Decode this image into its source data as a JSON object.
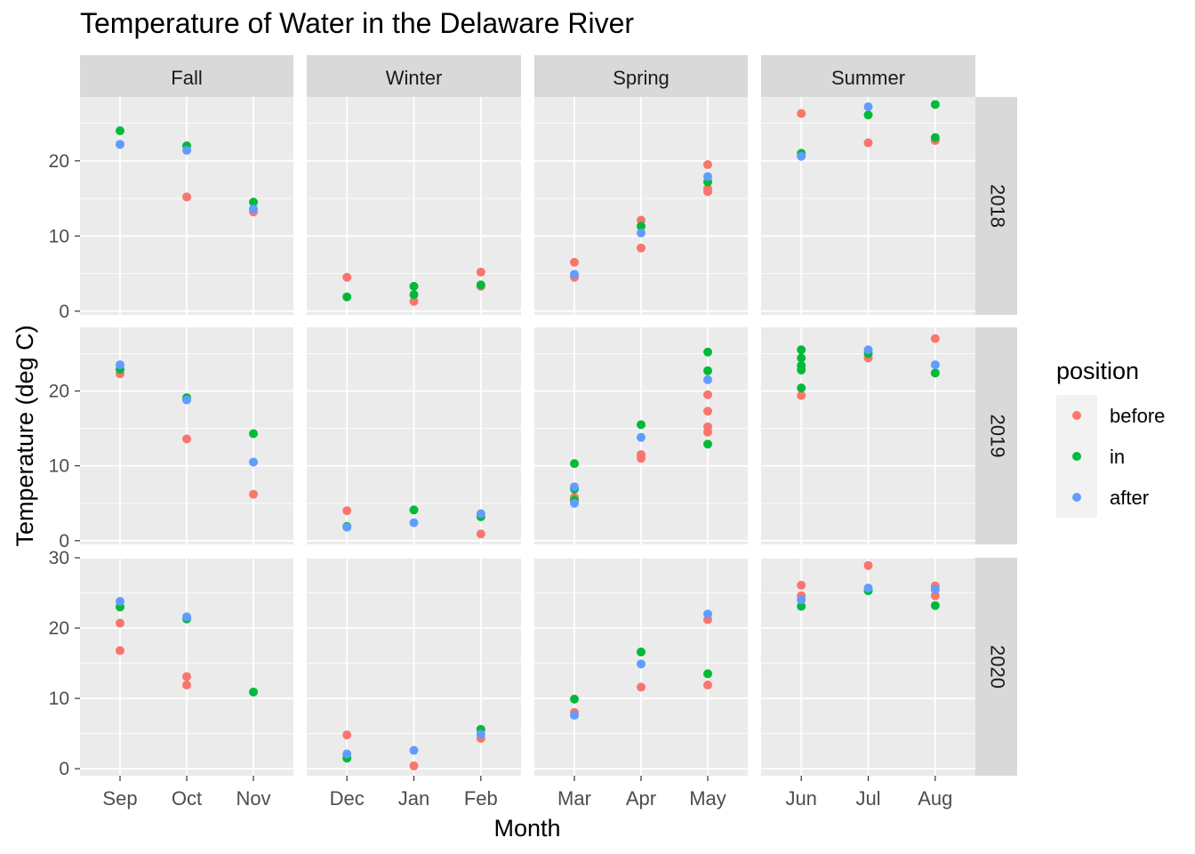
{
  "chart_data": {
    "type": "scatter",
    "title": "Temperature of Water in the Delaware River",
    "xlabel": "Month",
    "ylabel": "Temperature (deg C)",
    "legend": {
      "title": "position",
      "placement": "right",
      "entries": [
        {
          "name": "before",
          "color": "#F8766D"
        },
        {
          "name": "in",
          "color": "#00BA38"
        },
        {
          "name": "after",
          "color": "#619CFF"
        }
      ]
    },
    "columns": [
      {
        "label": "Fall",
        "months": [
          "Sep",
          "Oct",
          "Nov"
        ]
      },
      {
        "label": "Winter",
        "months": [
          "Dec",
          "Jan",
          "Feb"
        ]
      },
      {
        "label": "Spring",
        "months": [
          "Mar",
          "Apr",
          "May"
        ]
      },
      {
        "label": "Summer",
        "months": [
          "Jun",
          "Jul",
          "Aug"
        ]
      }
    ],
    "rows": [
      {
        "label": "2018",
        "ylim": [
          -0.5,
          28.5
        ],
        "yticks": [
          0,
          10,
          20
        ]
      },
      {
        "label": "2019",
        "ylim": [
          -0.5,
          28.5
        ],
        "yticks": [
          0,
          10,
          20
        ]
      },
      {
        "label": "2020",
        "ylim": [
          -1,
          30
        ],
        "yticks": [
          0,
          10,
          20,
          30
        ]
      }
    ],
    "grid": true,
    "points": [
      {
        "year": "2018",
        "month": "Sep",
        "position": "before",
        "y": 22.2
      },
      {
        "year": "2018",
        "month": "Sep",
        "position": "in",
        "y": 24.0
      },
      {
        "year": "2018",
        "month": "Sep",
        "position": "after",
        "y": 22.2
      },
      {
        "year": "2018",
        "month": "Oct",
        "position": "before",
        "y": 15.2
      },
      {
        "year": "2018",
        "month": "Oct",
        "position": "in",
        "y": 22.0
      },
      {
        "year": "2018",
        "month": "Oct",
        "position": "after",
        "y": 21.4
      },
      {
        "year": "2018",
        "month": "Nov",
        "position": "before",
        "y": 13.2
      },
      {
        "year": "2018",
        "month": "Nov",
        "position": "in",
        "y": 14.5
      },
      {
        "year": "2018",
        "month": "Nov",
        "position": "after",
        "y": 13.6
      },
      {
        "year": "2018",
        "month": "Dec",
        "position": "before",
        "y": 4.5
      },
      {
        "year": "2018",
        "month": "Dec",
        "position": "in",
        "y": 1.9
      },
      {
        "year": "2018",
        "month": "Jan",
        "position": "before",
        "y": 1.3
      },
      {
        "year": "2018",
        "month": "Jan",
        "position": "in",
        "y": 2.2
      },
      {
        "year": "2018",
        "month": "Jan",
        "position": "in",
        "y": 3.3
      },
      {
        "year": "2018",
        "month": "Feb",
        "position": "before",
        "y": 5.2
      },
      {
        "year": "2018",
        "month": "Feb",
        "position": "before",
        "y": 3.3
      },
      {
        "year": "2018",
        "month": "Feb",
        "position": "in",
        "y": 3.5
      },
      {
        "year": "2018",
        "month": "Mar",
        "position": "before",
        "y": 6.5
      },
      {
        "year": "2018",
        "month": "Mar",
        "position": "before",
        "y": 4.5
      },
      {
        "year": "2018",
        "month": "Mar",
        "position": "after",
        "y": 4.9
      },
      {
        "year": "2018",
        "month": "Apr",
        "position": "before",
        "y": 12.1
      },
      {
        "year": "2018",
        "month": "Apr",
        "position": "before",
        "y": 8.4
      },
      {
        "year": "2018",
        "month": "Apr",
        "position": "in",
        "y": 11.3
      },
      {
        "year": "2018",
        "month": "Apr",
        "position": "after",
        "y": 10.4
      },
      {
        "year": "2018",
        "month": "May",
        "position": "before",
        "y": 19.5
      },
      {
        "year": "2018",
        "month": "May",
        "position": "before",
        "y": 16.3
      },
      {
        "year": "2018",
        "month": "May",
        "position": "before",
        "y": 15.9
      },
      {
        "year": "2018",
        "month": "May",
        "position": "in",
        "y": 17.2
      },
      {
        "year": "2018",
        "month": "May",
        "position": "after",
        "y": 17.9
      },
      {
        "year": "2018",
        "month": "Jun",
        "position": "before",
        "y": 26.3
      },
      {
        "year": "2018",
        "month": "Jun",
        "position": "in",
        "y": 21.0
      },
      {
        "year": "2018",
        "month": "Jun",
        "position": "after",
        "y": 20.6
      },
      {
        "year": "2018",
        "month": "Jul",
        "position": "before",
        "y": 22.4
      },
      {
        "year": "2018",
        "month": "Jul",
        "position": "in",
        "y": 26.1
      },
      {
        "year": "2018",
        "month": "Jul",
        "position": "after",
        "y": 27.2
      },
      {
        "year": "2018",
        "month": "Aug",
        "position": "before",
        "y": 22.7
      },
      {
        "year": "2018",
        "month": "Aug",
        "position": "in",
        "y": 27.5
      },
      {
        "year": "2018",
        "month": "Aug",
        "position": "in",
        "y": 23.1
      },
      {
        "year": "2019",
        "month": "Sep",
        "position": "before",
        "y": 22.3
      },
      {
        "year": "2019",
        "month": "Sep",
        "position": "in",
        "y": 22.9
      },
      {
        "year": "2019",
        "month": "Sep",
        "position": "after",
        "y": 23.5
      },
      {
        "year": "2019",
        "month": "Oct",
        "position": "before",
        "y": 13.6
      },
      {
        "year": "2019",
        "month": "Oct",
        "position": "in",
        "y": 19.1
      },
      {
        "year": "2019",
        "month": "Oct",
        "position": "after",
        "y": 18.8
      },
      {
        "year": "2019",
        "month": "Nov",
        "position": "before",
        "y": 6.2
      },
      {
        "year": "2019",
        "month": "Nov",
        "position": "in",
        "y": 14.3
      },
      {
        "year": "2019",
        "month": "Nov",
        "position": "after",
        "y": 10.5
      },
      {
        "year": "2019",
        "month": "Dec",
        "position": "before",
        "y": 4.0
      },
      {
        "year": "2019",
        "month": "Dec",
        "position": "in",
        "y": 1.9
      },
      {
        "year": "2019",
        "month": "Dec",
        "position": "after",
        "y": 1.8
      },
      {
        "year": "2019",
        "month": "Jan",
        "position": "in",
        "y": 4.1
      },
      {
        "year": "2019",
        "month": "Jan",
        "position": "after",
        "y": 2.4
      },
      {
        "year": "2019",
        "month": "Feb",
        "position": "before",
        "y": 0.9
      },
      {
        "year": "2019",
        "month": "Feb",
        "position": "in",
        "y": 3.2
      },
      {
        "year": "2019",
        "month": "Feb",
        "position": "after",
        "y": 3.6
      },
      {
        "year": "2019",
        "month": "Mar",
        "position": "before",
        "y": 5.8
      },
      {
        "year": "2019",
        "month": "Mar",
        "position": "in",
        "y": 10.3
      },
      {
        "year": "2019",
        "month": "Mar",
        "position": "in",
        "y": 6.9
      },
      {
        "year": "2019",
        "month": "Mar",
        "position": "in",
        "y": 5.4
      },
      {
        "year": "2019",
        "month": "Mar",
        "position": "after",
        "y": 7.2
      },
      {
        "year": "2019",
        "month": "Mar",
        "position": "after",
        "y": 5.0
      },
      {
        "year": "2019",
        "month": "Apr",
        "position": "before",
        "y": 11.0
      },
      {
        "year": "2019",
        "month": "Apr",
        "position": "before",
        "y": 11.5
      },
      {
        "year": "2019",
        "month": "Apr",
        "position": "in",
        "y": 15.5
      },
      {
        "year": "2019",
        "month": "Apr",
        "position": "after",
        "y": 13.8
      },
      {
        "year": "2019",
        "month": "May",
        "position": "before",
        "y": 19.5
      },
      {
        "year": "2019",
        "month": "May",
        "position": "before",
        "y": 17.3
      },
      {
        "year": "2019",
        "month": "May",
        "position": "before",
        "y": 15.2
      },
      {
        "year": "2019",
        "month": "May",
        "position": "before",
        "y": 14.5
      },
      {
        "year": "2019",
        "month": "May",
        "position": "in",
        "y": 25.2
      },
      {
        "year": "2019",
        "month": "May",
        "position": "in",
        "y": 22.7
      },
      {
        "year": "2019",
        "month": "May",
        "position": "in",
        "y": 12.9
      },
      {
        "year": "2019",
        "month": "May",
        "position": "after",
        "y": 21.5
      },
      {
        "year": "2019",
        "month": "Jun",
        "position": "before",
        "y": 19.4
      },
      {
        "year": "2019",
        "month": "Jun",
        "position": "in",
        "y": 25.5
      },
      {
        "year": "2019",
        "month": "Jun",
        "position": "in",
        "y": 24.4
      },
      {
        "year": "2019",
        "month": "Jun",
        "position": "in",
        "y": 23.4
      },
      {
        "year": "2019",
        "month": "Jun",
        "position": "in",
        "y": 22.8
      },
      {
        "year": "2019",
        "month": "Jun",
        "position": "in",
        "y": 20.4
      },
      {
        "year": "2019",
        "month": "Jul",
        "position": "before",
        "y": 24.4
      },
      {
        "year": "2019",
        "month": "Jul",
        "position": "in",
        "y": 25.0
      },
      {
        "year": "2019",
        "month": "Jul",
        "position": "after",
        "y": 25.5
      },
      {
        "year": "2019",
        "month": "Aug",
        "position": "before",
        "y": 27.0
      },
      {
        "year": "2019",
        "month": "Aug",
        "position": "in",
        "y": 22.4
      },
      {
        "year": "2019",
        "month": "Aug",
        "position": "after",
        "y": 23.5
      },
      {
        "year": "2020",
        "month": "Sep",
        "position": "before",
        "y": 20.7
      },
      {
        "year": "2020",
        "month": "Sep",
        "position": "before",
        "y": 16.8
      },
      {
        "year": "2020",
        "month": "Sep",
        "position": "in",
        "y": 23.0
      },
      {
        "year": "2020",
        "month": "Sep",
        "position": "after",
        "y": 23.8
      },
      {
        "year": "2020",
        "month": "Oct",
        "position": "before",
        "y": 13.1
      },
      {
        "year": "2020",
        "month": "Oct",
        "position": "before",
        "y": 11.9
      },
      {
        "year": "2020",
        "month": "Oct",
        "position": "in",
        "y": 21.3
      },
      {
        "year": "2020",
        "month": "Oct",
        "position": "after",
        "y": 21.6
      },
      {
        "year": "2020",
        "month": "Nov",
        "position": "in",
        "y": 10.9
      },
      {
        "year": "2020",
        "month": "Dec",
        "position": "before",
        "y": 4.8
      },
      {
        "year": "2020",
        "month": "Dec",
        "position": "in",
        "y": 1.5
      },
      {
        "year": "2020",
        "month": "Dec",
        "position": "after",
        "y": 2.1
      },
      {
        "year": "2020",
        "month": "Jan",
        "position": "before",
        "y": 0.4
      },
      {
        "year": "2020",
        "month": "Jan",
        "position": "after",
        "y": 2.6
      },
      {
        "year": "2020",
        "month": "Feb",
        "position": "before",
        "y": 4.3
      },
      {
        "year": "2020",
        "month": "Feb",
        "position": "in",
        "y": 5.6
      },
      {
        "year": "2020",
        "month": "Feb",
        "position": "after",
        "y": 4.9
      },
      {
        "year": "2020",
        "month": "Mar",
        "position": "before",
        "y": 8.0
      },
      {
        "year": "2020",
        "month": "Mar",
        "position": "in",
        "y": 9.9
      },
      {
        "year": "2020",
        "month": "Mar",
        "position": "after",
        "y": 7.6
      },
      {
        "year": "2020",
        "month": "Apr",
        "position": "before",
        "y": 11.6
      },
      {
        "year": "2020",
        "month": "Apr",
        "position": "in",
        "y": 16.6
      },
      {
        "year": "2020",
        "month": "Apr",
        "position": "after",
        "y": 14.9
      },
      {
        "year": "2020",
        "month": "May",
        "position": "before",
        "y": 21.2
      },
      {
        "year": "2020",
        "month": "May",
        "position": "before",
        "y": 11.9
      },
      {
        "year": "2020",
        "month": "May",
        "position": "in",
        "y": 13.5
      },
      {
        "year": "2020",
        "month": "May",
        "position": "after",
        "y": 22.0
      },
      {
        "year": "2020",
        "month": "Jun",
        "position": "before",
        "y": 26.1
      },
      {
        "year": "2020",
        "month": "Jun",
        "position": "before",
        "y": 24.6
      },
      {
        "year": "2020",
        "month": "Jun",
        "position": "in",
        "y": 23.1
      },
      {
        "year": "2020",
        "month": "Jun",
        "position": "after",
        "y": 24.0
      },
      {
        "year": "2020",
        "month": "Jul",
        "position": "before",
        "y": 28.9
      },
      {
        "year": "2020",
        "month": "Jul",
        "position": "in",
        "y": 25.3
      },
      {
        "year": "2020",
        "month": "Jul",
        "position": "after",
        "y": 25.7
      },
      {
        "year": "2020",
        "month": "Aug",
        "position": "before",
        "y": 26.0
      },
      {
        "year": "2020",
        "month": "Aug",
        "position": "before",
        "y": 24.6
      },
      {
        "year": "2020",
        "month": "Aug",
        "position": "in",
        "y": 23.2
      },
      {
        "year": "2020",
        "month": "Aug",
        "position": "after",
        "y": 25.5
      }
    ]
  }
}
